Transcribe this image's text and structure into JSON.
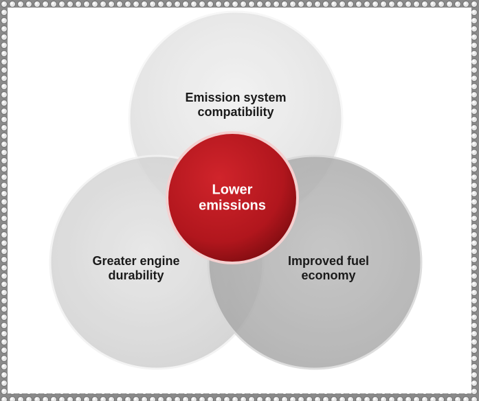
{
  "nodes": [
    {
      "lines": [
        "Emission system",
        "compatibility"
      ]
    },
    {
      "lines": [
        "Greater engine",
        "durability"
      ]
    },
    {
      "lines": [
        "Improved fuel",
        "economy"
      ]
    },
    {
      "lines": [
        "Lower",
        "emissions"
      ]
    }
  ]
}
